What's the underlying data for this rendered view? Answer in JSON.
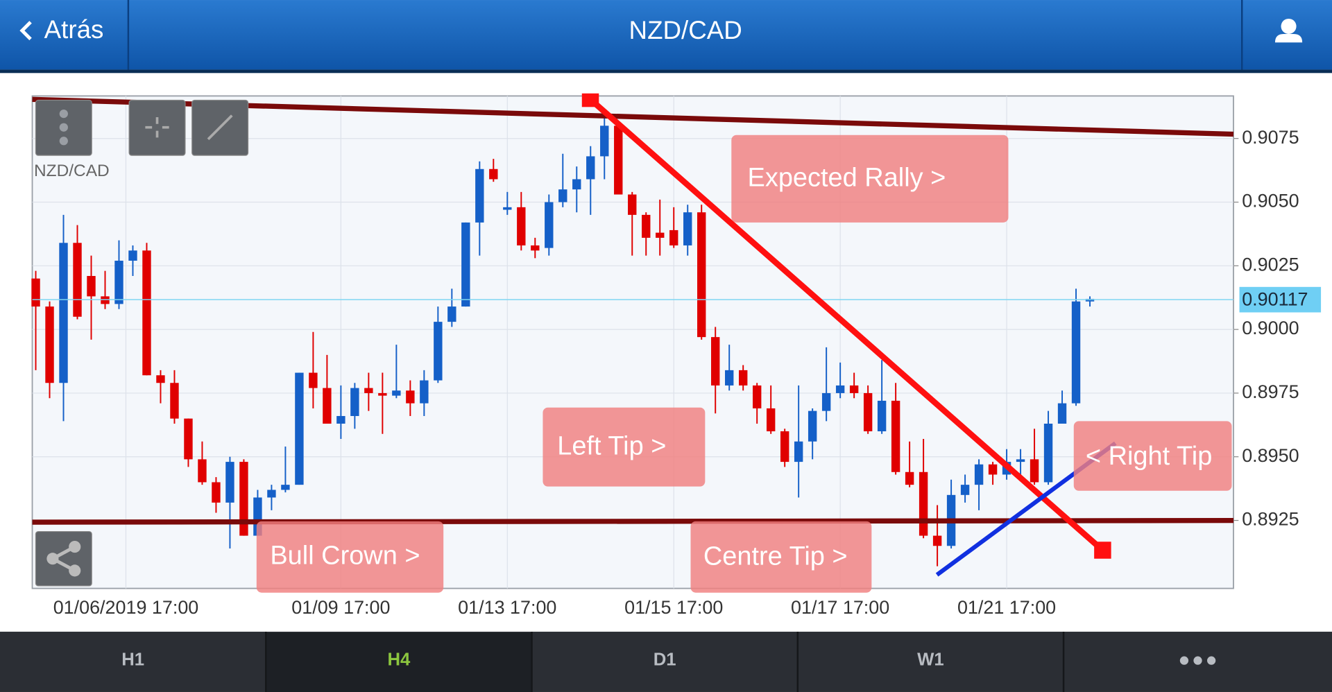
{
  "header": {
    "back": "Atrás",
    "title": "NZD/CAD"
  },
  "chart_data": {
    "type": "candlestick",
    "symbol": "NZD/CAD",
    "up_color": "#1560c8",
    "down_color": "#e00000",
    "grid": true,
    "xlim": [
      -0.25,
      86.35
    ],
    "ylim": [
      0.88983,
      0.90917
    ],
    "yticks": [
      0.8925,
      {
        "value": 0.895,
        "label": "0.8950"
      },
      0.8975,
      {
        "value": 0.9,
        "label": "0.9000"
      },
      0.9025,
      {
        "value": 0.905,
        "label": "0.9050"
      },
      0.9075
    ],
    "xticks": [
      {
        "value": 6.5,
        "label": "01/06/2019 17:00"
      },
      {
        "value": 22,
        "label": "01/09 17:00"
      },
      {
        "value": 34,
        "label": "01/13 17:00"
      },
      {
        "value": 46,
        "label": "01/15 17:00"
      },
      {
        "value": 58,
        "label": "01/17 17:00"
      },
      {
        "value": 70,
        "label": "01/21 17:00"
      }
    ],
    "current_price": 0.90117,
    "ohlc": [
      [
        0.902,
        0.9023,
        0.8984,
        0.9009
      ],
      [
        0.9009,
        0.9011,
        0.8973,
        0.8979
      ],
      [
        0.8979,
        0.9045,
        0.8964,
        0.9034
      ],
      [
        0.9034,
        0.9041,
        0.9004,
        0.9005
      ],
      [
        0.9021,
        0.9029,
        0.8996,
        0.9013
      ],
      [
        0.9013,
        0.9023,
        0.9008,
        0.901
      ],
      [
        0.901,
        0.9035,
        0.9008,
        0.9027
      ],
      [
        0.9027,
        0.9033,
        0.9021,
        0.9031
      ],
      [
        0.9031,
        0.9034,
        0.8982,
        0.8982
      ],
      [
        0.8982,
        0.8984,
        0.8971,
        0.8979
      ],
      [
        0.8979,
        0.8984,
        0.8963,
        0.8965
      ],
      [
        0.8965,
        0.8965,
        0.8946,
        0.8949
      ],
      [
        0.8949,
        0.8956,
        0.8939,
        0.894
      ],
      [
        0.894,
        0.8942,
        0.8928,
        0.8932
      ],
      [
        0.8932,
        0.895,
        0.8914,
        0.8948
      ],
      [
        0.8948,
        0.8949,
        0.8919,
        0.8919
      ],
      [
        0.8919,
        0.8937,
        0.8919,
        0.8934
      ],
      [
        0.8934,
        0.8939,
        0.8929,
        0.8937
      ],
      [
        0.8937,
        0.8954,
        0.8936,
        0.8939
      ],
      [
        0.8939,
        0.8983,
        0.8939,
        0.8983
      ],
      [
        0.8983,
        0.8999,
        0.8969,
        0.8977
      ],
      [
        0.8977,
        0.899,
        0.8963,
        0.8963
      ],
      [
        0.8963,
        0.8978,
        0.8957,
        0.8966
      ],
      [
        0.8966,
        0.8979,
        0.8961,
        0.8977
      ],
      [
        0.8977,
        0.8983,
        0.8968,
        0.8975
      ],
      [
        0.8975,
        0.8983,
        0.8959,
        0.8974
      ],
      [
        0.8974,
        0.8994,
        0.8973,
        0.8976
      ],
      [
        0.8976,
        0.898,
        0.8966,
        0.8971
      ],
      [
        0.8971,
        0.8984,
        0.8966,
        0.898
      ],
      [
        0.898,
        0.9009,
        0.8979,
        0.9003
      ],
      [
        0.9003,
        0.9016,
        0.9001,
        0.9009
      ],
      [
        0.9009,
        0.9042,
        0.9009,
        0.9042
      ],
      [
        0.9042,
        0.9066,
        0.9029,
        0.9063
      ],
      [
        0.9063,
        0.9067,
        0.9058,
        0.9059
      ],
      [
        0.9047,
        0.9054,
        0.9045,
        0.9048
      ],
      [
        0.9048,
        0.9054,
        0.9031,
        0.9033
      ],
      [
        0.9033,
        0.9036,
        0.9028,
        0.9031
      ],
      [
        0.9032,
        0.9053,
        0.9029,
        0.905
      ],
      [
        0.905,
        0.9069,
        0.9048,
        0.9055
      ],
      [
        0.9055,
        0.9064,
        0.9046,
        0.9059
      ],
      [
        0.9059,
        0.9072,
        0.9045,
        0.9068
      ],
      [
        0.9068,
        0.9083,
        0.9059,
        0.908
      ],
      [
        0.908,
        0.9082,
        0.9053,
        0.9053
      ],
      [
        0.9053,
        0.9054,
        0.9029,
        0.9045
      ],
      [
        0.9045,
        0.9046,
        0.9029,
        0.9036
      ],
      [
        0.9038,
        0.9051,
        0.9029,
        0.9036
      ],
      [
        0.9039,
        0.9048,
        0.9032,
        0.9033
      ],
      [
        0.9033,
        0.9049,
        0.9029,
        0.9046
      ],
      [
        0.9046,
        0.9049,
        0.8996,
        0.8997
      ],
      [
        0.8997,
        0.9001,
        0.8967,
        0.8978
      ],
      [
        0.8978,
        0.8994,
        0.8976,
        0.8984
      ],
      [
        0.8984,
        0.8986,
        0.8976,
        0.8978
      ],
      [
        0.8978,
        0.8979,
        0.8963,
        0.8969
      ],
      [
        0.8969,
        0.8978,
        0.8959,
        0.896
      ],
      [
        0.896,
        0.8961,
        0.8946,
        0.8948
      ],
      [
        0.8948,
        0.8978,
        0.8934,
        0.8956
      ],
      [
        0.8956,
        0.8969,
        0.8949,
        0.8968
      ],
      [
        0.8968,
        0.8993,
        0.8964,
        0.8975
      ],
      [
        0.8975,
        0.8987,
        0.8973,
        0.8978
      ],
      [
        0.8978,
        0.8983,
        0.8973,
        0.8975
      ],
      [
        0.8975,
        0.8978,
        0.8959,
        0.896
      ],
      [
        0.896,
        0.8988,
        0.8959,
        0.8972
      ],
      [
        0.8972,
        0.8979,
        0.8943,
        0.8944
      ],
      [
        0.8944,
        0.8956,
        0.8938,
        0.8939
      ],
      [
        0.8944,
        0.8957,
        0.8918,
        0.8919
      ],
      [
        0.8919,
        0.8931,
        0.8907,
        0.8915
      ],
      [
        0.8915,
        0.8941,
        0.8914,
        0.8935
      ],
      [
        0.8935,
        0.8943,
        0.8932,
        0.8939
      ],
      [
        0.8939,
        0.8949,
        0.8929,
        0.8947
      ],
      [
        0.8947,
        0.8948,
        0.8939,
        0.8943
      ],
      [
        0.8943,
        0.8953,
        0.8941,
        0.8948
      ],
      [
        0.8948,
        0.8953,
        0.8943,
        0.8949
      ],
      [
        0.8949,
        0.8961,
        0.8939,
        0.894
      ],
      [
        0.894,
        0.8968,
        0.8939,
        0.8963
      ],
      [
        0.8963,
        0.8976,
        0.8963,
        0.8971
      ],
      [
        0.8971,
        0.9016,
        0.897,
        0.9011
      ],
      [
        0.9011,
        0.9013,
        0.9009,
        0.9012
      ]
    ],
    "annotations": [
      "Expected Rally >",
      "Left Tip >",
      "Bull Crown >",
      "Centre Tip >",
      "< Right Tip"
    ]
  },
  "footer": {
    "tabs": [
      "H1",
      "H4",
      "D1",
      "W1"
    ],
    "active_tab": 1
  }
}
